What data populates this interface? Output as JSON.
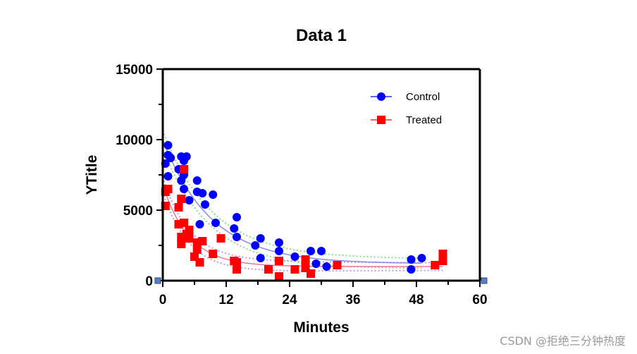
{
  "chart_data": {
    "type": "scatter",
    "title": "Data 1",
    "xlabel": "Minutes",
    "ylabel": "YTitle",
    "xlim": [
      0,
      60
    ],
    "ylim": [
      0,
      15000
    ],
    "x_ticks": [
      0,
      12,
      24,
      36,
      48,
      60
    ],
    "y_ticks": [
      0,
      5000,
      10000,
      15000
    ],
    "legend_position": "top-right",
    "grid": false,
    "series": [
      {
        "name": "Control",
        "marker": "circle",
        "color": "#0000ff",
        "fit_color": "#8888ee",
        "ci_color": "#88dd88",
        "points": [
          [
            0.5,
            8300
          ],
          [
            1.0,
            9600
          ],
          [
            1.0,
            8900
          ],
          [
            1.5,
            8700
          ],
          [
            1.0,
            7400
          ],
          [
            3.5,
            8800
          ],
          [
            4.5,
            8800
          ],
          [
            4.0,
            8500
          ],
          [
            3.0,
            7900
          ],
          [
            3.5,
            7100
          ],
          [
            4.0,
            7500
          ],
          [
            4.0,
            6500
          ],
          [
            5.0,
            5700
          ],
          [
            6.5,
            7100
          ],
          [
            6.5,
            6300
          ],
          [
            7.5,
            6200
          ],
          [
            9.5,
            6100
          ],
          [
            8.0,
            5400
          ],
          [
            7.0,
            4000
          ],
          [
            10.0,
            4100
          ],
          [
            13.5,
            3700
          ],
          [
            14.0,
            4500
          ],
          [
            14.0,
            3100
          ],
          [
            17.5,
            2500
          ],
          [
            18.5,
            3000
          ],
          [
            22.0,
            2700
          ],
          [
            22.0,
            2100
          ],
          [
            18.5,
            1600
          ],
          [
            25.0,
            1700
          ],
          [
            28.0,
            2100
          ],
          [
            30.0,
            2100
          ],
          [
            29.0,
            1200
          ],
          [
            31.0,
            1000
          ],
          [
            47.0,
            1500
          ],
          [
            49.0,
            1600
          ],
          [
            47.0,
            800
          ]
        ],
        "fit": {
          "plateau": 1200,
          "span": 8800,
          "k": 0.11
        }
      },
      {
        "name": "Treated",
        "marker": "square",
        "color": "#ff0000",
        "fit_color": "#ee7799",
        "ci_color": "#bb99ee",
        "points": [
          [
            0.5,
            6300
          ],
          [
            1.0,
            6500
          ],
          [
            0.5,
            5300
          ],
          [
            3.0,
            5200
          ],
          [
            3.5,
            5800
          ],
          [
            4.0,
            7900
          ],
          [
            3.0,
            4000
          ],
          [
            4.0,
            4100
          ],
          [
            5.0,
            3600
          ],
          [
            3.5,
            3100
          ],
          [
            4.5,
            3300
          ],
          [
            3.5,
            2600
          ],
          [
            5.0,
            3000
          ],
          [
            6.5,
            2700
          ],
          [
            7.5,
            2800
          ],
          [
            6.5,
            2200
          ],
          [
            6.0,
            1700
          ],
          [
            7.0,
            1300
          ],
          [
            9.5,
            1900
          ],
          [
            11.0,
            3000
          ],
          [
            13.5,
            1400
          ],
          [
            14.0,
            1300
          ],
          [
            14.0,
            800
          ],
          [
            20.0,
            800
          ],
          [
            22.0,
            1400
          ],
          [
            22.0,
            300
          ],
          [
            25.0,
            800
          ],
          [
            27.0,
            1500
          ],
          [
            27.0,
            900
          ],
          [
            28.0,
            500
          ],
          [
            33.0,
            1100
          ],
          [
            51.5,
            1100
          ],
          [
            53.0,
            1900
          ],
          [
            53.0,
            1400
          ]
        ],
        "fit": {
          "plateau": 1000,
          "span": 5800,
          "k": 0.2
        }
      }
    ]
  },
  "watermark": "CSDN @拒绝三分钟热度"
}
